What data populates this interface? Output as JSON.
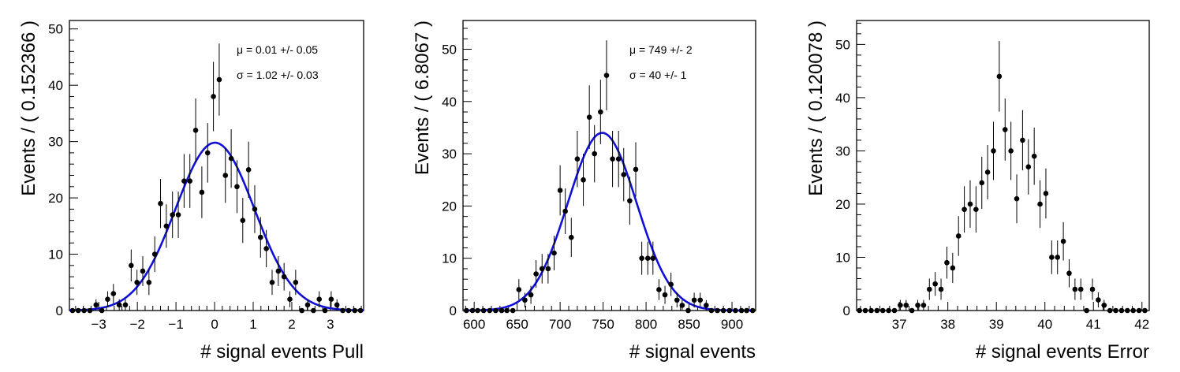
{
  "chart_data": [
    {
      "type": "scatter",
      "xlabel": "# signal events Pull",
      "ylabel": "Events / ( 0.152366 )",
      "xlim": [
        -3.76,
        3.86
      ],
      "ylim": [
        0,
        51.5
      ],
      "xticks": [
        -3,
        -2,
        -1,
        0,
        1,
        2,
        3
      ],
      "yticks": [
        0,
        10,
        20,
        30,
        40,
        50
      ],
      "stats": [
        "μ =  0.01 +/- 0.05",
        "σ =  1.02 +/- 0.03"
      ],
      "fit": {
        "mean": 0.01,
        "sigma": 1.02,
        "peak": 29.8
      },
      "series": [
        {
          "x": [
            -3.68,
            -3.53,
            -3.38,
            -3.23,
            -3.07,
            -2.92,
            -2.77,
            -2.62,
            -2.47,
            -2.31,
            -2.16,
            -2.01,
            -1.86,
            -1.7,
            -1.55,
            -1.4,
            -1.25,
            -1.09,
            -0.94,
            -0.79,
            -0.64,
            -0.49,
            -0.33,
            -0.18,
            -0.03,
            0.12,
            0.28,
            0.43,
            0.58,
            0.73,
            0.88,
            1.04,
            1.19,
            1.34,
            1.49,
            1.65,
            1.8,
            1.95,
            2.1,
            2.26,
            2.41,
            2.56,
            2.71,
            2.86,
            3.02,
            3.17,
            3.32,
            3.47,
            3.63,
            3.78
          ],
          "y": [
            0,
            0,
            0,
            0,
            1,
            0,
            2,
            3,
            1,
            1,
            8,
            5,
            7,
            5,
            10,
            19,
            15,
            17,
            17,
            23,
            23,
            32,
            21,
            28,
            38,
            41,
            24,
            27,
            22,
            16,
            25,
            18,
            13,
            11,
            5,
            7,
            6,
            2,
            5,
            0,
            1,
            0,
            2,
            0,
            2,
            1,
            0,
            0,
            0,
            0
          ]
        }
      ]
    },
    {
      "type": "scatter",
      "xlabel": "# signal events",
      "ylabel": "Events / ( 6.8067 )",
      "xlim": [
        587,
        927.5
      ],
      "ylim": [
        0,
        55.5
      ],
      "xticks": [
        600,
        650,
        700,
        750,
        800,
        850,
        900
      ],
      "yticks": [
        0,
        10,
        20,
        30,
        40,
        50
      ],
      "stats": [
        "μ =  749 +/- 2",
        "σ =  40 +/- 1"
      ],
      "fit": {
        "mean": 749,
        "sigma": 40,
        "peak": 34.0
      },
      "series": [
        {
          "x": [
            591,
            598,
            604,
            611,
            618,
            625,
            632,
            638,
            645,
            652,
            659,
            666,
            672,
            679,
            686,
            693,
            700,
            706,
            713,
            720,
            727,
            734,
            740,
            747,
            754,
            761,
            768,
            774,
            781,
            788,
            795,
            802,
            808,
            815,
            822,
            829,
            836,
            842,
            849,
            856,
            863,
            870,
            876,
            883,
            890,
            897,
            904,
            911,
            917,
            924
          ],
          "y": [
            0,
            0,
            0,
            0,
            0,
            0,
            0,
            0,
            0,
            4,
            2,
            3,
            7,
            8,
            8,
            11,
            23,
            19,
            14,
            29,
            25,
            37,
            30,
            38,
            45,
            29,
            29,
            26,
            21,
            27,
            10,
            10,
            10,
            4,
            3,
            5,
            2,
            1,
            0,
            2,
            2,
            1,
            0,
            0,
            0,
            0,
            0,
            0,
            0,
            0
          ]
        }
      ]
    },
    {
      "type": "scatter",
      "xlabel": "# signal events Error",
      "ylabel": "Events / ( 0.120078 )",
      "xlim": [
        36.12,
        42.15
      ],
      "ylim": [
        0,
        54.5
      ],
      "xticks": [
        37,
        38,
        39,
        40,
        41,
        42
      ],
      "yticks": [
        0,
        10,
        20,
        30,
        40,
        50
      ],
      "stats": [],
      "series": [
        {
          "x": [
            36.18,
            36.3,
            36.42,
            36.54,
            36.66,
            36.78,
            36.9,
            37.02,
            37.14,
            37.26,
            37.38,
            37.5,
            37.62,
            37.74,
            37.86,
            37.98,
            38.1,
            38.22,
            38.34,
            38.46,
            38.58,
            38.7,
            38.82,
            38.94,
            39.06,
            39.18,
            39.3,
            39.42,
            39.54,
            39.66,
            39.78,
            39.9,
            40.02,
            40.14,
            40.26,
            40.38,
            40.5,
            40.62,
            40.74,
            40.86,
            40.98,
            41.1,
            41.22,
            41.34,
            41.46,
            41.58,
            41.7,
            41.82,
            41.94,
            42.06
          ],
          "y": [
            0,
            0,
            0,
            0,
            0,
            0,
            0,
            1,
            1,
            0,
            1,
            1,
            4,
            5,
            4,
            9,
            8,
            14,
            19,
            20,
            19,
            24,
            26,
            30,
            44,
            34,
            30,
            21,
            32,
            27,
            29,
            20,
            22,
            10,
            10,
            13,
            7,
            4,
            4,
            0,
            4,
            2,
            1,
            0,
            0,
            0,
            0,
            0,
            0,
            0
          ]
        }
      ]
    }
  ]
}
